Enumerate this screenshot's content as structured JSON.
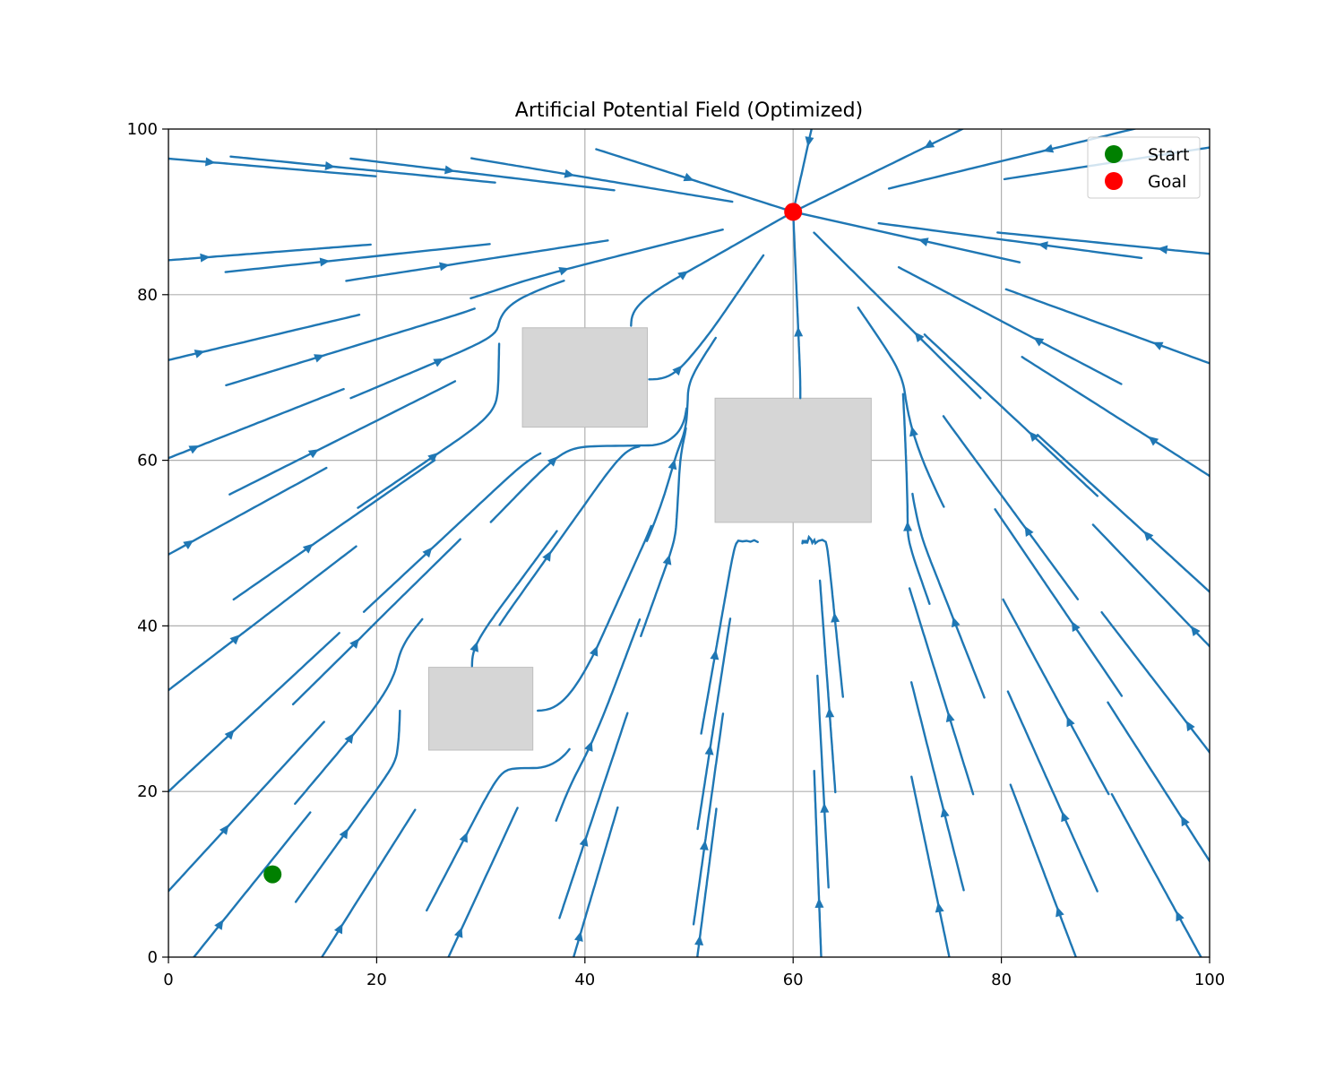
{
  "chart_data": {
    "type": "streamplot",
    "title": "Artificial Potential Field (Optimized)",
    "xlabel": "",
    "ylabel": "",
    "xlim": [
      0,
      100
    ],
    "ylim": [
      0,
      100
    ],
    "x_ticks": [
      0,
      20,
      40,
      60,
      80,
      100
    ],
    "y_ticks": [
      0,
      20,
      40,
      60,
      80,
      100
    ],
    "x_tick_labels": [
      "0",
      "20",
      "40",
      "60",
      "80",
      "100"
    ],
    "y_tick_labels": [
      "0",
      "20",
      "40",
      "60",
      "80",
      "100"
    ],
    "grid": true,
    "legend_position": "upper right",
    "stream_color": "#1f77b4",
    "obstacle_color": "#d6d6d6",
    "goal": {
      "x": 60,
      "y": 90
    },
    "start": {
      "x": 10,
      "y": 10
    },
    "obstacles": [
      {
        "x": 34,
        "y": 64,
        "width": 12,
        "height": 12
      },
      {
        "x": 52.5,
        "y": 52.5,
        "width": 15,
        "height": 15
      },
      {
        "x": 25,
        "y": 25,
        "width": 10,
        "height": 10
      }
    ],
    "series": [
      {
        "name": "Start",
        "color": "#008000",
        "x": 10,
        "y": 10
      },
      {
        "name": "Goal",
        "color": "#ff0000",
        "x": 60,
        "y": 90
      }
    ]
  }
}
